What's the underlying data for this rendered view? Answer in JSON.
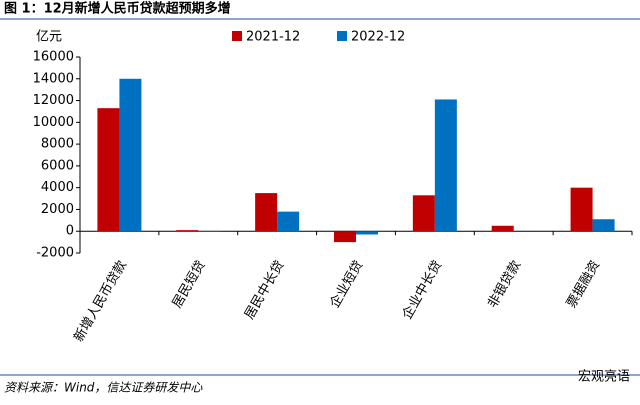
{
  "chart_data": {
    "type": "bar",
    "title": "图 1：12月新增人民币贷款超预期多增",
    "y_unit": "亿元",
    "categories": [
      "新增人民币贷款",
      "居民短贷",
      "居民中长贷",
      "企业短贷",
      "企业中长贷",
      "非银贷款",
      "票据融资"
    ],
    "series": [
      {
        "name": "2021-12",
        "color": "#c00000",
        "values": [
          11300,
          100,
          3500,
          -1000,
          3300,
          500,
          4000
        ]
      },
      {
        "name": "2022-12",
        "color": "#0070c0",
        "values": [
          14000,
          -50,
          1800,
          -300,
          12100,
          0,
          1100
        ]
      }
    ],
    "ylim": [
      -2000,
      16000
    ],
    "yticks": [
      -2000,
      0,
      2000,
      4000,
      6000,
      8000,
      10000,
      12000,
      14000,
      16000
    ],
    "source": "资料来源：Wind，信达证券研发中心",
    "watermark": "宏观亮语"
  }
}
